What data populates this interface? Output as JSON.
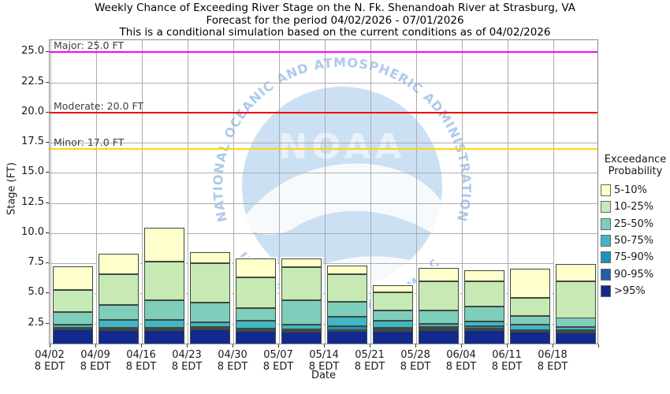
{
  "title": {
    "line1": "Weekly Chance of Exceeding River Stage on the N. Fk. Shenandoah River at Strasburg, VA",
    "line2": "Forecast for the period 04/02/2026 - 07/01/2026",
    "line3": "This is a conditional simulation based on the current conditions as of 04/02/2026"
  },
  "watermark": {
    "acronym": "NOAA",
    "ring_top": "NATIONAL OCEANIC AND ATMOSPHERIC ADMINISTRATION",
    "ring_bottom": "U.S. DEPARTMENT OF COMMERCE",
    "circle_color": "#cbe0f3",
    "ring_text_color": "#adcaea"
  },
  "legend": {
    "title_line1": "Exceedance",
    "title_line2": "Probability",
    "items": [
      {
        "label": "5-10%",
        "color": "#ffffcc"
      },
      {
        "label": "10-25%",
        "color": "#c7e9b4"
      },
      {
        "label": "25-50%",
        "color": "#7fcdbb"
      },
      {
        "label": "50-75%",
        "color": "#41b6c4"
      },
      {
        "label": "75-90%",
        "color": "#1d91c0"
      },
      {
        "label": "90-95%",
        "color": "#225ea8"
      },
      {
        "label": ">95%",
        "color": "#12298e"
      }
    ]
  },
  "chart_data": {
    "type": "bar",
    "stacked": true,
    "title": "Weekly Chance of Exceeding River Stage",
    "xlabel": "Date",
    "ylabel": "Stage (FT)",
    "ylim": [
      0.7,
      26.0
    ],
    "yticks": [
      2.5,
      5.0,
      7.5,
      10.0,
      12.5,
      15.0,
      17.5,
      20.0,
      22.5,
      25.0
    ],
    "grid": true,
    "legend_position": "right",
    "categories": [
      "04/02",
      "04/09",
      "04/16",
      "04/23",
      "04/30",
      "05/07",
      "05/14",
      "05/21",
      "05/28",
      "06/04",
      "06/11",
      "06/18"
    ],
    "x_sublabel": "8 EDT",
    "series_note": "values are cumulative stage tops (FT) of each exceedance-probability band, stacked bottom to top; bars start at the axis bottom (0.7 FT)",
    "series": [
      {
        "name": ">95%",
        "color": "#12298e",
        "stage_top": [
          2.0,
          1.95,
          1.95,
          2.0,
          1.9,
          1.8,
          1.9,
          1.9,
          1.95,
          1.95,
          1.8,
          1.75
        ]
      },
      {
        "name": "90-95%",
        "color": "#225ea8",
        "stage_top": [
          2.05,
          2.0,
          2.0,
          2.05,
          1.95,
          1.85,
          1.95,
          2.0,
          2.05,
          2.05,
          1.85,
          1.8
        ]
      },
      {
        "name": "75-90%",
        "color": "#1d91c0",
        "stage_top": [
          2.15,
          2.1,
          2.15,
          2.2,
          2.1,
          2.0,
          2.3,
          2.15,
          2.2,
          2.25,
          1.95,
          1.95
        ]
      },
      {
        "name": "50-75%",
        "color": "#41b6c4",
        "stage_top": [
          2.4,
          2.8,
          2.8,
          2.6,
          2.7,
          2.4,
          3.05,
          2.75,
          2.45,
          2.65,
          2.4,
          2.2
        ]
      },
      {
        "name": "25-50%",
        "color": "#7fcdbb",
        "stage_top": [
          3.45,
          4.0,
          4.45,
          4.2,
          3.8,
          4.4,
          4.3,
          3.6,
          3.6,
          3.9,
          3.1,
          2.95
        ]
      },
      {
        "name": "10-25%",
        "color": "#c7e9b4",
        "stage_top": [
          5.3,
          6.6,
          7.6,
          7.5,
          6.3,
          7.2,
          6.6,
          5.1,
          6.0,
          6.0,
          4.6,
          6.0
        ]
      },
      {
        "name": "5-10%",
        "color": "#ffffcc",
        "stage_top": [
          7.25,
          8.3,
          10.45,
          8.4,
          7.9,
          7.9,
          7.3,
          5.65,
          7.1,
          6.9,
          7.05,
          7.45
        ]
      }
    ],
    "thresholds": [
      {
        "name": "Major",
        "value": 25.0,
        "label": "Major: 25.0 FT",
        "color": "#ff00ff"
      },
      {
        "name": "Moderate",
        "value": 20.0,
        "label": "Moderate: 20.0 FT",
        "color": "#f00000"
      },
      {
        "name": "Minor",
        "value": 17.0,
        "label": "Minor: 17.0 FT",
        "color": "#ffd700"
      }
    ]
  }
}
